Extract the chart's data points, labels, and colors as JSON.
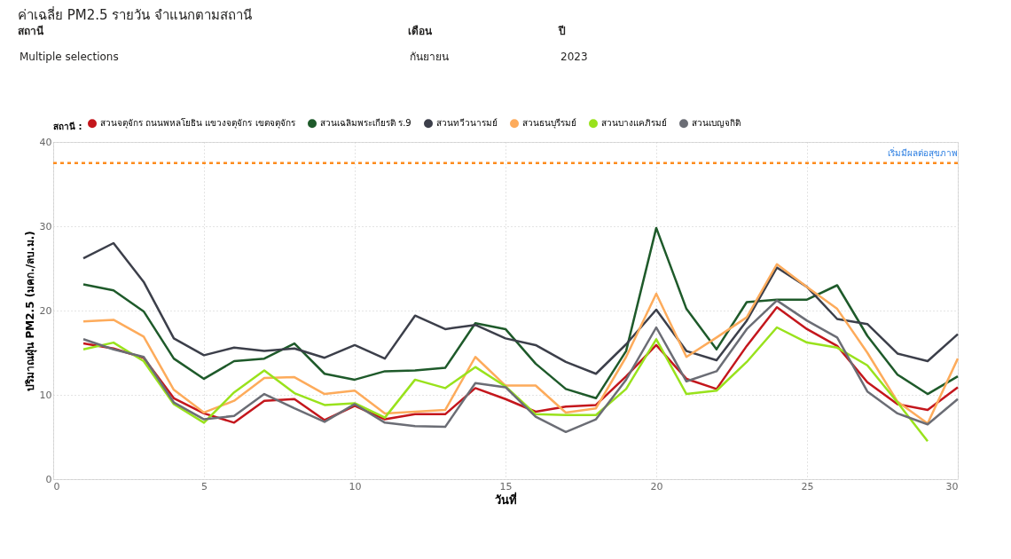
{
  "chart_data": {
    "type": "line",
    "title": "ค่าเฉลี่ย PM2.5 รายวัน จำแนกตามสถานี",
    "xlabel": "วันที่",
    "ylabel": "ปริมาณฝุ่น PM2.5 (มคก./ลบ.ม.)",
    "legend_title": "สถานี :",
    "annotations": [
      "สถานี",
      "Multiple selections",
      "เดือน",
      "กันยายน",
      "ปี",
      "2023"
    ],
    "x": [
      1,
      2,
      3,
      4,
      5,
      6,
      7,
      8,
      9,
      10,
      11,
      12,
      13,
      14,
      15,
      16,
      17,
      18,
      19,
      20,
      21,
      22,
      23,
      24,
      25,
      26,
      27,
      28,
      29,
      30
    ],
    "xlim": [
      0,
      30
    ],
    "xticks": [
      0,
      5,
      10,
      15,
      20,
      25,
      30
    ],
    "ylim": [
      0,
      40
    ],
    "yticks": [
      0,
      10,
      20,
      30,
      40
    ],
    "grid": true,
    "legend": "top left",
    "line_style": "solid",
    "marker": "none",
    "ref_lines": [
      {
        "axis": "y",
        "value": 37.5,
        "label": "เริ่มมีผลต่อสุขภาพ",
        "color": "#fd8c1e",
        "line_style": "dotted"
      }
    ],
    "series": [
      {
        "name": "สวนจตุจักร ถนนพหลโยธิน แขวงจตุจักร เขตจตุจักร",
        "color": "#c4161c",
        "values": [
          16.1,
          15.5,
          14.4,
          9.6,
          7.8,
          6.7,
          9.3,
          9.5,
          7.0,
          8.7,
          7.1,
          7.7,
          7.7,
          10.8,
          9.5,
          8.0,
          8.6,
          8.8,
          12.2,
          15.9,
          11.9,
          10.7,
          15.8,
          20.4,
          17.8,
          15.8,
          11.5,
          8.9,
          8.2,
          10.9
        ]
      },
      {
        "name": "สวนเฉลิมพระเกียรติ ร.9",
        "color": "#1e5a2a",
        "values": [
          23.1,
          22.4,
          19.9,
          14.3,
          11.9,
          14.0,
          14.3,
          16.1,
          12.5,
          11.8,
          12.8,
          12.9,
          13.2,
          18.5,
          17.8,
          13.7,
          10.7,
          9.6,
          15.2,
          29.8,
          20.2,
          15.4,
          21.0,
          21.3,
          21.3,
          23.0,
          17.0,
          12.4,
          10.1,
          12.2
        ]
      },
      {
        "name": "สวนทวีวนารมย์",
        "color": "#3c3f4a",
        "values": [
          26.2,
          28.0,
          23.4,
          16.7,
          14.7,
          15.6,
          15.2,
          15.5,
          14.4,
          15.9,
          14.3,
          19.4,
          17.8,
          18.3,
          16.7,
          15.9,
          13.9,
          12.5,
          16.0,
          20.1,
          15.2,
          14.1,
          18.8,
          25.1,
          22.8,
          19.0,
          18.4,
          14.9,
          14.0,
          17.2
        ]
      },
      {
        "name": "สวนธนบุรีรมย์",
        "color": "#fdab5b",
        "values": [
          18.7,
          18.9,
          16.9,
          10.6,
          7.9,
          9.3,
          12.0,
          12.1,
          10.1,
          10.5,
          7.8,
          8.0,
          8.2,
          14.5,
          11.1,
          11.1,
          7.9,
          8.4,
          14.5,
          22.0,
          14.5,
          16.8,
          19.2,
          25.5,
          22.8,
          20.2,
          15.0,
          9.2,
          6.6,
          14.3
        ]
      },
      {
        "name": "สวนบางแคภิรมย์",
        "color": "#99e21c",
        "values": [
          15.4,
          16.2,
          14.0,
          8.9,
          6.7,
          10.3,
          12.9,
          10.2,
          8.8,
          9.0,
          7.3,
          11.8,
          10.8,
          13.3,
          11.0,
          7.7,
          7.6,
          7.6,
          10.7,
          16.6,
          10.1,
          10.5,
          13.9,
          18.0,
          16.2,
          15.6,
          13.5,
          9.1,
          4.5,
          null
        ]
      },
      {
        "name": "สวนเบญจกิติ",
        "color": "#6b6d75",
        "values": [
          16.6,
          15.4,
          14.5,
          9.1,
          7.1,
          7.5,
          10.1,
          8.4,
          6.8,
          8.9,
          6.7,
          6.3,
          6.2,
          11.4,
          10.9,
          7.4,
          5.6,
          7.1,
          11.8,
          18.0,
          11.6,
          12.8,
          17.8,
          21.2,
          18.8,
          16.8,
          10.4,
          7.8,
          6.5,
          9.5
        ]
      }
    ]
  }
}
